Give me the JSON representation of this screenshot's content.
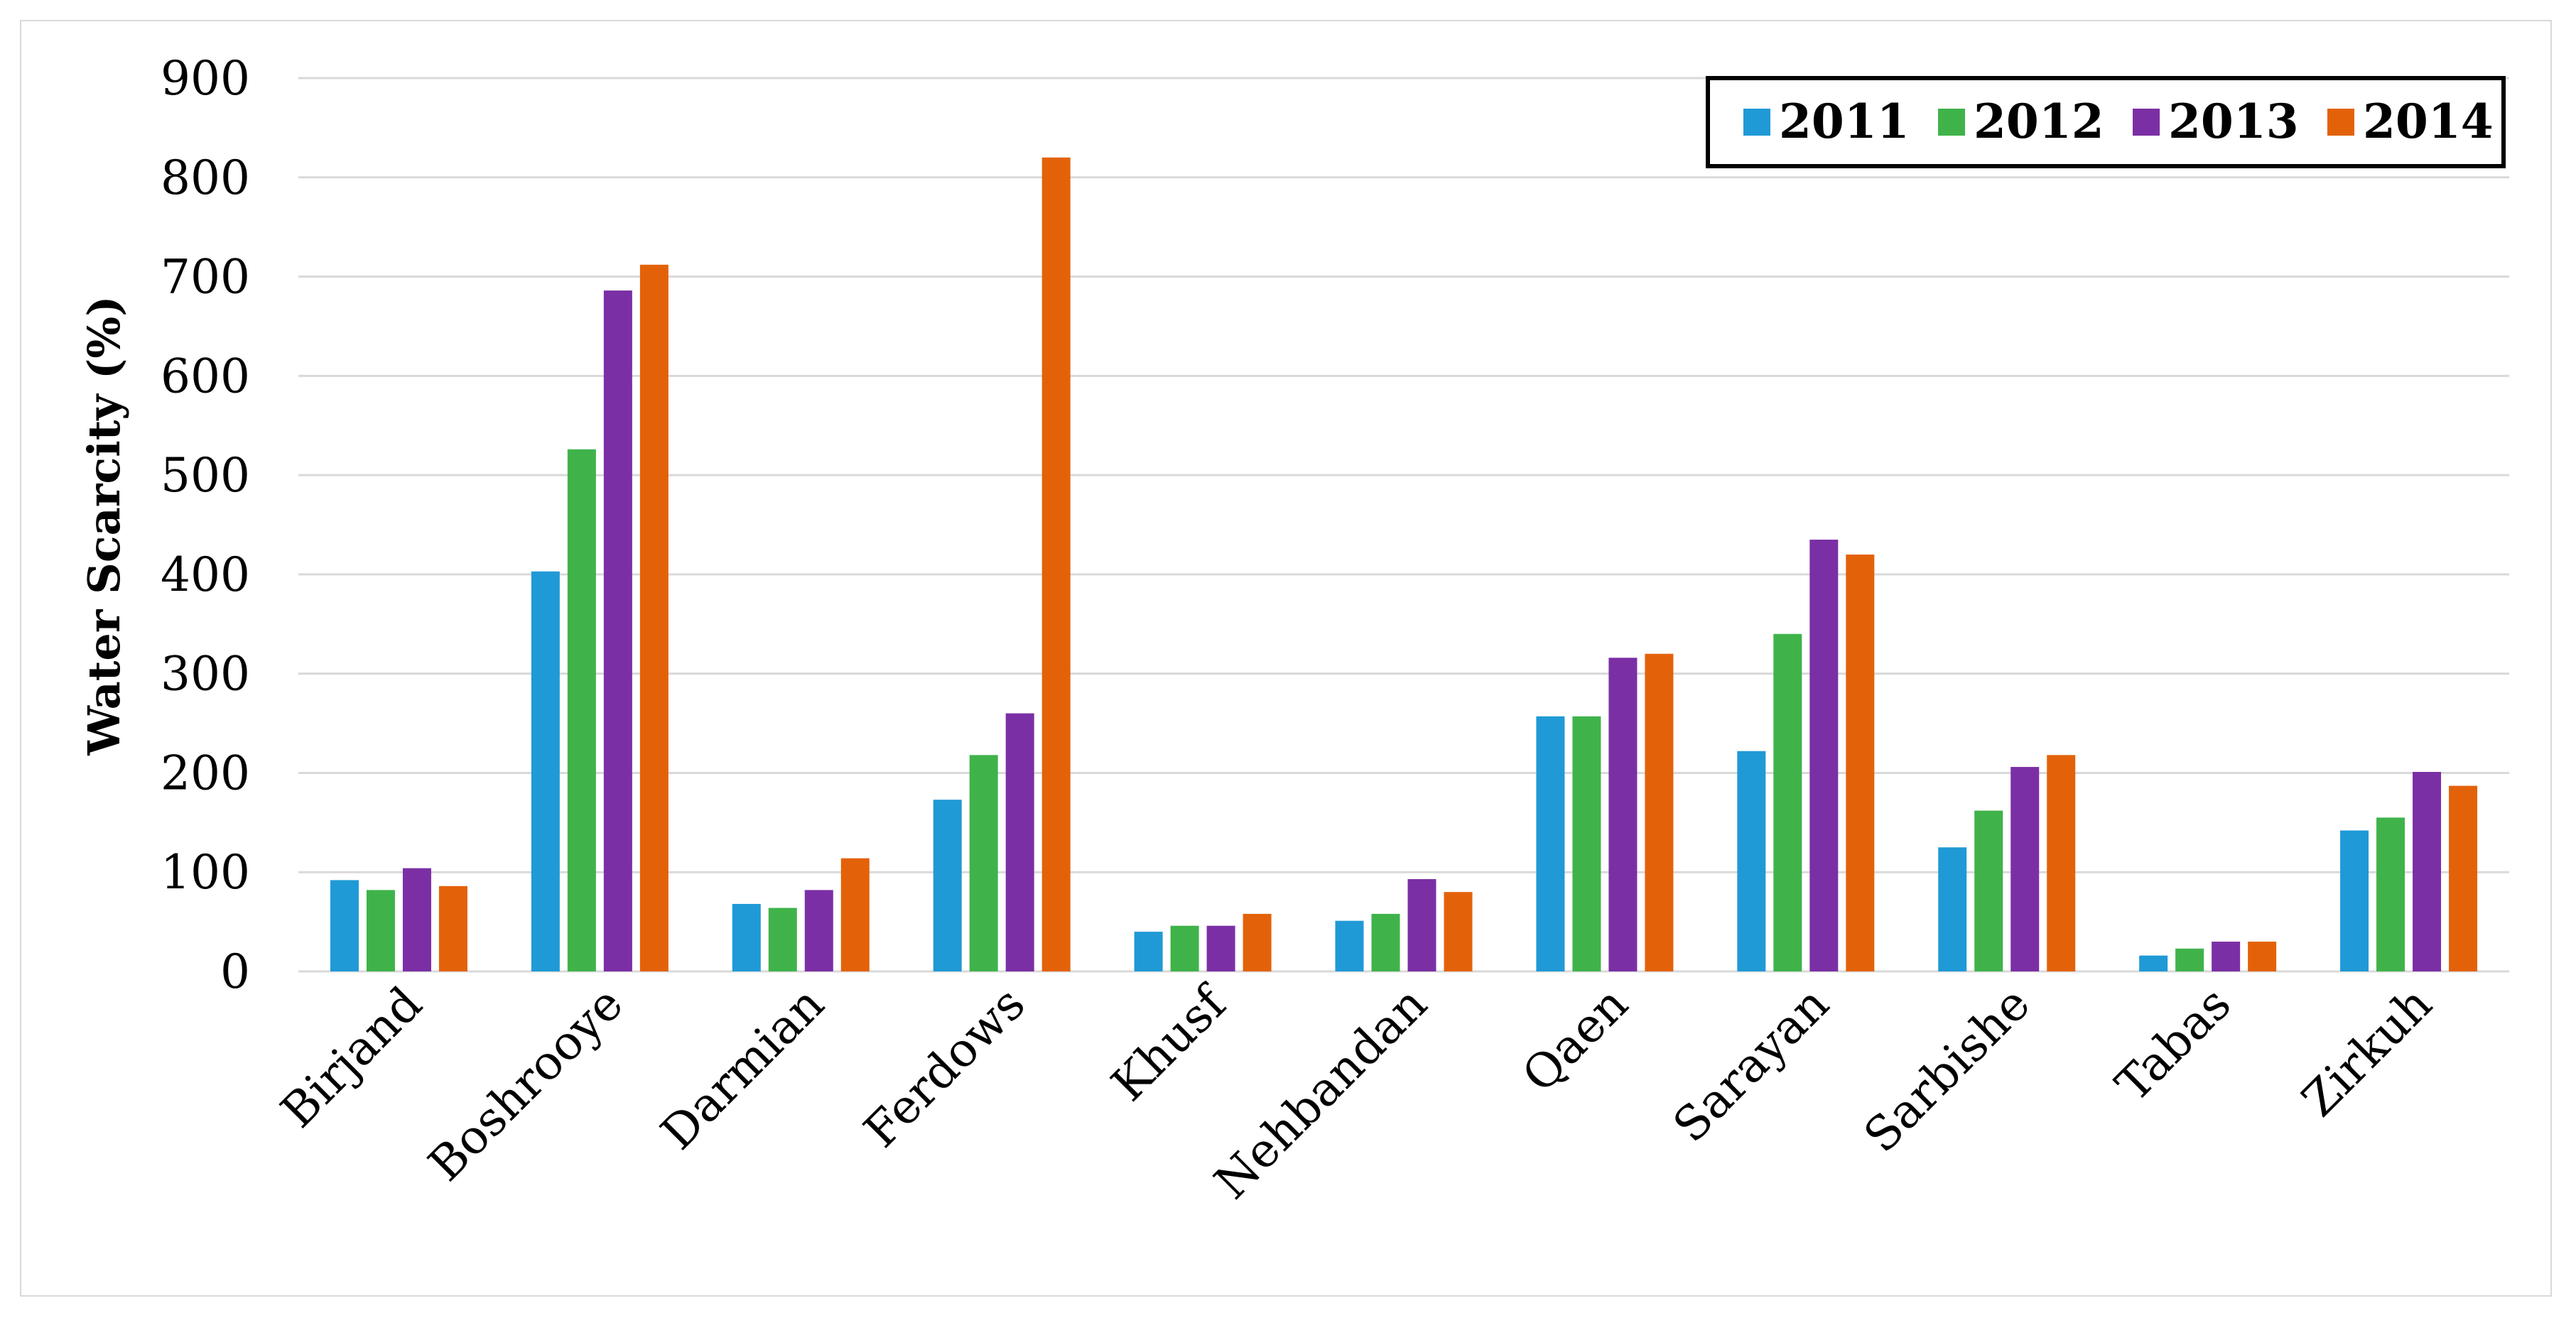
{
  "chart_data": {
    "type": "bar",
    "title": "",
    "xlabel": "",
    "ylabel": "Water Scarcity (%)",
    "ylim": [
      0,
      900
    ],
    "yticks": [
      0,
      100,
      200,
      300,
      400,
      500,
      600,
      700,
      800,
      900
    ],
    "grid": true,
    "legend_position": "top-right",
    "categories": [
      "Birjand",
      "Boshrooye",
      "Darmian",
      "Ferdows",
      "Khusf",
      "Nehbandan",
      "Qaen",
      "Sarayan",
      "Sarbishe",
      "Tabas",
      "Zirkuh"
    ],
    "series": [
      {
        "name": "2011",
        "color": "#1f9ad6",
        "values": [
          92,
          403,
          68,
          173,
          40,
          51,
          257,
          222,
          125,
          16,
          142
        ]
      },
      {
        "name": "2012",
        "color": "#3fb34a",
        "values": [
          82,
          526,
          64,
          218,
          46,
          58,
          257,
          340,
          162,
          23,
          155
        ]
      },
      {
        "name": "2013",
        "color": "#7b2fa5",
        "values": [
          104,
          686,
          82,
          260,
          46,
          93,
          316,
          435,
          206,
          30,
          201
        ]
      },
      {
        "name": "2014",
        "color": "#e36209",
        "values": [
          86,
          712,
          114,
          820,
          58,
          80,
          320,
          420,
          218,
          30,
          187
        ]
      }
    ]
  }
}
